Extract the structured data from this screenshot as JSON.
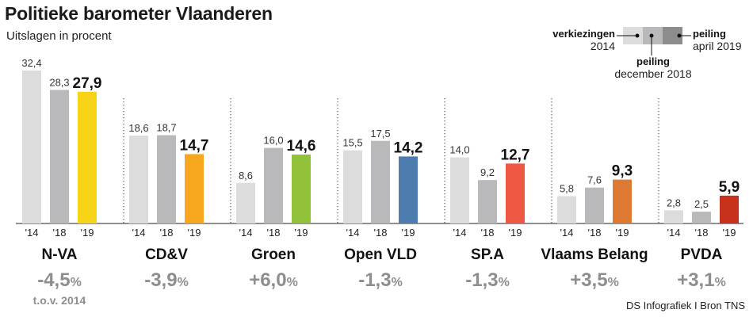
{
  "title": "Politieke barometer Vlaanderen",
  "subtitle": "Uitslagen in procent",
  "source": "DS Infografiek I Bron TNS",
  "legend": {
    "verkiezingen_label": "verkiezingen",
    "verkiezingen_year": "2014",
    "peiling_dec_label": "peiling",
    "peiling_dec_date": "december 2018",
    "peiling_apr_label": "peiling",
    "peiling_apr_date": "april 2019"
  },
  "colors": {
    "bar_2014": "#dcdcdc",
    "bar_2018": "#b9b9bc",
    "legend_dark": "#8c8c8c"
  },
  "chart_data": {
    "type": "bar",
    "categories": [
      "'14",
      "'18",
      "'19"
    ],
    "series": [
      {
        "name": "N-VA",
        "values": [
          32.4,
          28.3,
          27.9
        ],
        "labels": [
          "32,4",
          "28,3",
          "27,9"
        ],
        "color": "#f7d417",
        "change": "-4,5",
        "change_unit": "%",
        "note": "t.o.v. 2014"
      },
      {
        "name": "CD&V",
        "values": [
          18.6,
          18.7,
          14.7
        ],
        "labels": [
          "18,6",
          "18,7",
          "14,7"
        ],
        "color": "#f6a71d",
        "change": "-3,9",
        "change_unit": "%"
      },
      {
        "name": "Groen",
        "values": [
          8.6,
          16.0,
          14.6
        ],
        "labels": [
          "8,6",
          "16,0",
          "14,6"
        ],
        "color": "#92c13a",
        "change": "+6,0",
        "change_unit": "%"
      },
      {
        "name": "Open VLD",
        "values": [
          15.5,
          17.5,
          14.2
        ],
        "labels": [
          "15,5",
          "17,5",
          "14,2"
        ],
        "color": "#4d7cae",
        "change": "-1,3",
        "change_unit": "%"
      },
      {
        "name": "SP.A",
        "values": [
          14.0,
          9.2,
          12.7
        ],
        "labels": [
          "14,0",
          "9,2",
          "12,7"
        ],
        "color": "#ee5843",
        "change": "-1,3",
        "change_unit": "%"
      },
      {
        "name": "Vlaams Belang",
        "values": [
          5.8,
          7.6,
          9.3
        ],
        "labels": [
          "5,8",
          "7,6",
          "9,3"
        ],
        "color": "#df7a35",
        "change": "+3,5",
        "change_unit": "%"
      },
      {
        "name": "PVDA",
        "values": [
          2.8,
          2.5,
          5.9
        ],
        "labels": [
          "2,8",
          "2,5",
          "5,9"
        ],
        "color": "#c6321c",
        "change": "+3,1",
        "change_unit": "%"
      }
    ],
    "ylim": [
      0,
      32.4
    ]
  }
}
